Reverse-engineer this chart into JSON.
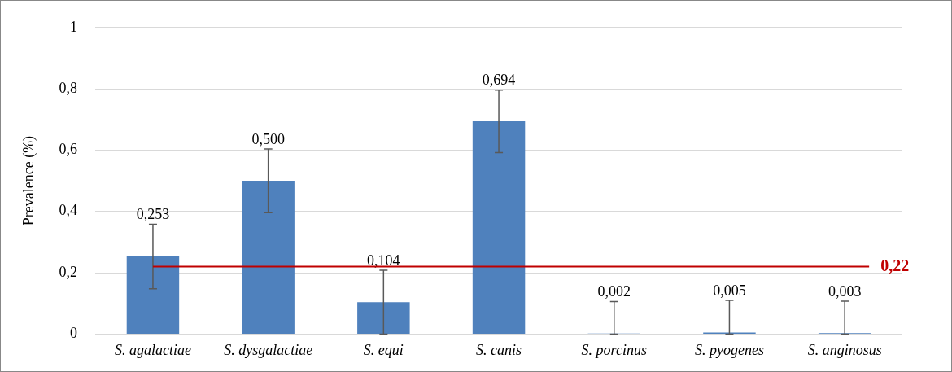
{
  "chart_data": {
    "type": "bar",
    "ylabel": "Prevalence (%)",
    "categories": [
      "S. agalactiae",
      "S. dysgalactiae",
      "S. equi",
      "S. canis",
      "S. porcinus",
      "S. pyogenes",
      "S. anginosus"
    ],
    "values": [
      0.253,
      0.5,
      0.104,
      0.694,
      0.002,
      0.005,
      0.003
    ],
    "value_labels": [
      "0,253",
      "0,500",
      "0,104",
      "0,694",
      "0,002",
      "0,005",
      "0,003"
    ],
    "errors": [
      0.105,
      0.104,
      0.104,
      0.102,
      [
        0,
        0.106
      ],
      [
        0,
        0.11
      ],
      [
        0,
        0.107
      ]
    ],
    "color": "#4f81bd",
    "ylim": [
      0,
      1
    ],
    "yticks": [
      {
        "value": 0,
        "label": "0"
      },
      {
        "value": 0.2,
        "label": "0,2"
      },
      {
        "value": 0.4,
        "label": "0,4"
      },
      {
        "value": 0.6,
        "label": "0,6"
      },
      {
        "value": 0.8,
        "label": "0,8"
      },
      {
        "value": 1,
        "label": "1"
      }
    ],
    "ref_lines": [
      {
        "axis": "y",
        "value": 0.22,
        "label": "0,22",
        "color": "#c00000"
      }
    ],
    "grid": "y",
    "legend": false
  }
}
